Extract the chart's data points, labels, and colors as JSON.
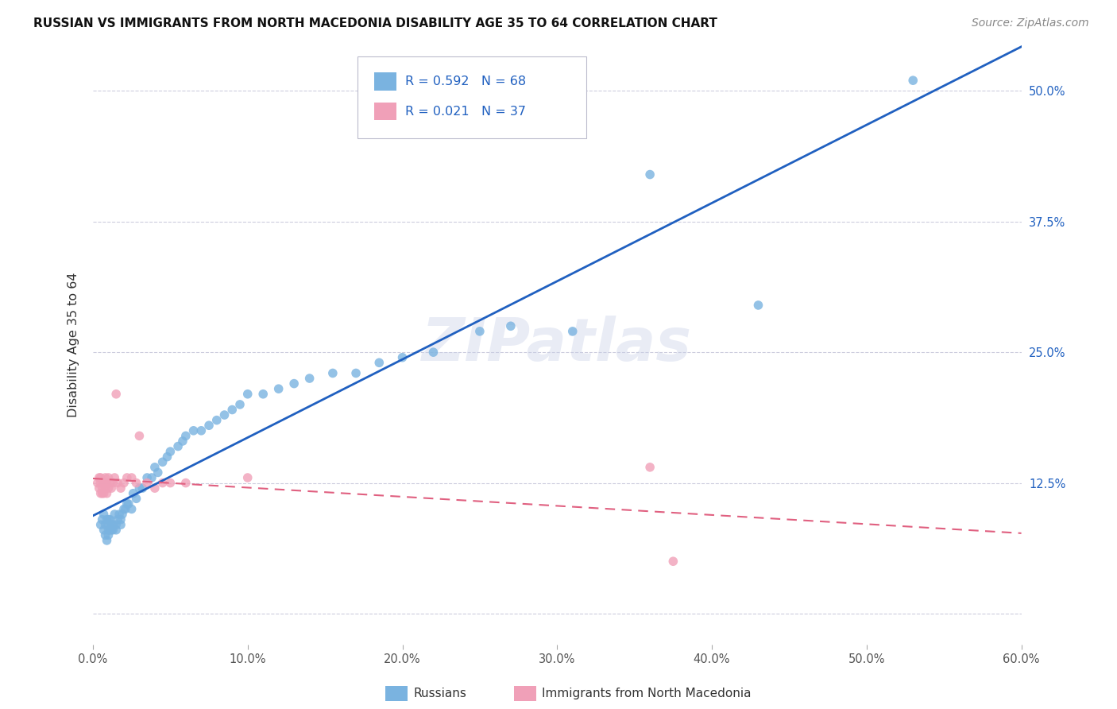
{
  "title": "RUSSIAN VS IMMIGRANTS FROM NORTH MACEDONIA DISABILITY AGE 35 TO 64 CORRELATION CHART",
  "source": "Source: ZipAtlas.com",
  "ylabel": "Disability Age 35 to 64",
  "ytick_values": [
    0.0,
    0.125,
    0.25,
    0.375,
    0.5
  ],
  "ytick_labels": [
    "",
    "12.5%",
    "25.0%",
    "37.5%",
    "50.0%"
  ],
  "xtick_values": [
    0.0,
    0.1,
    0.2,
    0.3,
    0.4,
    0.5,
    0.6
  ],
  "xtick_labels": [
    "0.0%",
    "10.0%",
    "20.0%",
    "30.0%",
    "40.0%",
    "50.0%",
    "60.0%"
  ],
  "xmin": 0.0,
  "xmax": 0.6,
  "ymin": -0.03,
  "ymax": 0.545,
  "watermark": "ZIPatlas",
  "russian_color": "#7ab3e0",
  "macedonian_color": "#f0a0b8",
  "trendline_russian_color": "#2060c0",
  "trendline_macedonian_color": "#e06080",
  "background_color": "#ffffff",
  "grid_color": "#ccccdd",
  "legend_r1": "R = 0.592",
  "legend_n1": "N = 68",
  "legend_r2": "R = 0.021",
  "legend_n2": "N = 37",
  "russians_x": [
    0.005,
    0.006,
    0.007,
    0.007,
    0.008,
    0.008,
    0.009,
    0.009,
    0.01,
    0.01,
    0.01,
    0.01,
    0.011,
    0.011,
    0.012,
    0.012,
    0.013,
    0.013,
    0.014,
    0.015,
    0.015,
    0.016,
    0.017,
    0.018,
    0.018,
    0.019,
    0.02,
    0.021,
    0.022,
    0.023,
    0.025,
    0.026,
    0.028,
    0.03,
    0.032,
    0.035,
    0.038,
    0.04,
    0.042,
    0.045,
    0.048,
    0.05,
    0.055,
    0.058,
    0.06,
    0.065,
    0.07,
    0.075,
    0.08,
    0.085,
    0.09,
    0.095,
    0.1,
    0.11,
    0.12,
    0.13,
    0.14,
    0.155,
    0.17,
    0.185,
    0.2,
    0.22,
    0.25,
    0.27,
    0.31,
    0.36,
    0.43,
    0.53
  ],
  "russians_y": [
    0.085,
    0.09,
    0.095,
    0.08,
    0.085,
    0.075,
    0.09,
    0.07,
    0.09,
    0.08,
    0.085,
    0.075,
    0.08,
    0.09,
    0.085,
    0.08,
    0.085,
    0.08,
    0.095,
    0.085,
    0.08,
    0.09,
    0.095,
    0.085,
    0.09,
    0.095,
    0.1,
    0.1,
    0.105,
    0.105,
    0.1,
    0.115,
    0.11,
    0.12,
    0.12,
    0.13,
    0.13,
    0.14,
    0.135,
    0.145,
    0.15,
    0.155,
    0.16,
    0.165,
    0.17,
    0.175,
    0.175,
    0.18,
    0.185,
    0.19,
    0.195,
    0.2,
    0.21,
    0.21,
    0.215,
    0.22,
    0.225,
    0.23,
    0.23,
    0.24,
    0.245,
    0.25,
    0.27,
    0.275,
    0.27,
    0.42,
    0.295,
    0.51
  ],
  "macedonians_x": [
    0.003,
    0.004,
    0.004,
    0.005,
    0.005,
    0.005,
    0.006,
    0.006,
    0.007,
    0.007,
    0.008,
    0.008,
    0.008,
    0.009,
    0.009,
    0.01,
    0.01,
    0.011,
    0.012,
    0.013,
    0.014,
    0.015,
    0.016,
    0.018,
    0.02,
    0.022,
    0.025,
    0.028,
    0.03,
    0.035,
    0.04,
    0.045,
    0.05,
    0.06,
    0.1,
    0.36,
    0.375
  ],
  "macedonians_y": [
    0.125,
    0.13,
    0.12,
    0.115,
    0.125,
    0.13,
    0.115,
    0.12,
    0.125,
    0.115,
    0.12,
    0.125,
    0.13,
    0.115,
    0.125,
    0.12,
    0.13,
    0.125,
    0.12,
    0.125,
    0.13,
    0.21,
    0.125,
    0.12,
    0.125,
    0.13,
    0.13,
    0.125,
    0.17,
    0.125,
    0.12,
    0.125,
    0.125,
    0.125,
    0.13,
    0.14,
    0.05
  ]
}
